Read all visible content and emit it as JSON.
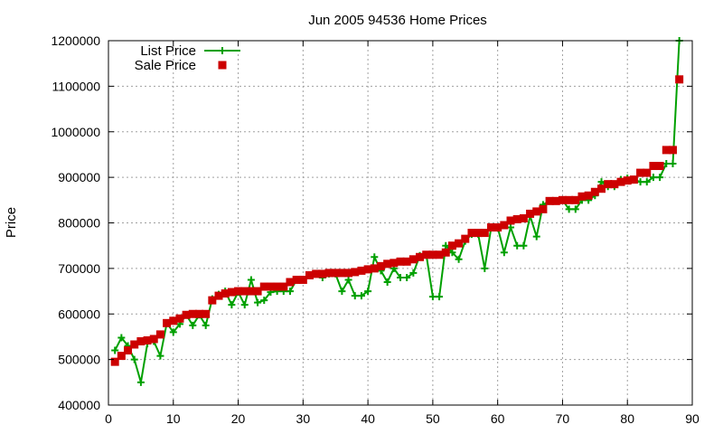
{
  "chart_data": {
    "type": "line",
    "title": "Jun 2005 94536 Home Prices",
    "xlabel": "",
    "ylabel": "Price",
    "xlim": [
      0,
      90
    ],
    "ylim": [
      400000,
      1200000
    ],
    "x_ticks": [
      "0",
      "10",
      "20",
      "30",
      "40",
      "50",
      "60",
      "70",
      "80",
      "90"
    ],
    "y_ticks": [
      "400000",
      "500000",
      "600000",
      "700000",
      "800000",
      "900000",
      "1000000",
      "1100000",
      "1200000"
    ],
    "grid": true,
    "legend_position": "top-left",
    "series": [
      {
        "name": "List Price",
        "style": "line+cross",
        "color": "#00a000",
        "x": [
          1,
          2,
          3,
          4,
          5,
          6,
          7,
          8,
          9,
          10,
          11,
          12,
          13,
          14,
          15,
          16,
          17,
          18,
          19,
          20,
          21,
          22,
          23,
          24,
          25,
          26,
          27,
          28,
          29,
          30,
          31,
          32,
          33,
          34,
          35,
          36,
          37,
          38,
          39,
          40,
          41,
          42,
          43,
          44,
          45,
          46,
          47,
          48,
          49,
          50,
          51,
          52,
          53,
          54,
          55,
          56,
          57,
          58,
          59,
          60,
          61,
          62,
          63,
          64,
          65,
          66,
          67,
          68,
          69,
          70,
          71,
          72,
          73,
          74,
          75,
          76,
          77,
          78,
          79,
          80,
          81,
          82,
          83,
          84,
          85,
          86,
          87,
          88
        ],
        "values": [
          520000,
          548000,
          530000,
          500000,
          450000,
          535000,
          540000,
          508000,
          580000,
          560000,
          578000,
          598000,
          575000,
          598000,
          575000,
          633000,
          643000,
          650000,
          620000,
          648000,
          620000,
          675000,
          625000,
          630000,
          648000,
          650000,
          650000,
          650000,
          675000,
          675000,
          685000,
          688000,
          680000,
          688000,
          688000,
          650000,
          675000,
          640000,
          640000,
          650000,
          725000,
          695000,
          670000,
          700000,
          680000,
          680000,
          690000,
          728000,
          730000,
          638000,
          638000,
          750000,
          735000,
          720000,
          760000,
          775000,
          775000,
          700000,
          790000,
          790000,
          735000,
          790000,
          750000,
          750000,
          815000,
          770000,
          840000,
          848000,
          848000,
          850000,
          830000,
          830000,
          850000,
          850000,
          860000,
          890000,
          880000,
          880000,
          895000,
          898000,
          895000,
          890000,
          890000,
          900000,
          900000,
          930000,
          930000,
          1200000
        ]
      },
      {
        "name": "Sale Price",
        "style": "square",
        "color": "#cc0000",
        "x": [
          1,
          2,
          3,
          4,
          5,
          6,
          7,
          8,
          9,
          10,
          11,
          12,
          13,
          14,
          15,
          16,
          17,
          18,
          19,
          20,
          21,
          22,
          23,
          24,
          25,
          26,
          27,
          28,
          29,
          30,
          31,
          32,
          33,
          34,
          35,
          36,
          37,
          38,
          39,
          40,
          41,
          42,
          43,
          44,
          45,
          46,
          47,
          48,
          49,
          50,
          51,
          52,
          53,
          54,
          55,
          56,
          57,
          58,
          59,
          60,
          61,
          62,
          63,
          64,
          65,
          66,
          67,
          68,
          69,
          70,
          71,
          72,
          73,
          74,
          75,
          76,
          77,
          78,
          79,
          80,
          81,
          82,
          83,
          84,
          85,
          86,
          87,
          88
        ],
        "values": [
          495000,
          508000,
          520000,
          533000,
          540000,
          542000,
          545000,
          555000,
          580000,
          585000,
          590000,
          598000,
          600000,
          600000,
          600000,
          630000,
          640000,
          645000,
          648000,
          650000,
          650000,
          650000,
          650000,
          660000,
          660000,
          660000,
          660000,
          670000,
          675000,
          675000,
          685000,
          688000,
          688000,
          690000,
          690000,
          690000,
          690000,
          692000,
          695000,
          698000,
          700000,
          705000,
          710000,
          712000,
          715000,
          715000,
          720000,
          725000,
          730000,
          730000,
          730000,
          735000,
          750000,
          755000,
          765000,
          778000,
          778000,
          778000,
          790000,
          790000,
          795000,
          805000,
          808000,
          810000,
          820000,
          825000,
          830000,
          848000,
          848000,
          850000,
          850000,
          850000,
          858000,
          860000,
          868000,
          875000,
          885000,
          885000,
          890000,
          893000,
          895000,
          910000,
          910000,
          925000,
          925000,
          960000,
          960000,
          1115000
        ]
      }
    ]
  }
}
